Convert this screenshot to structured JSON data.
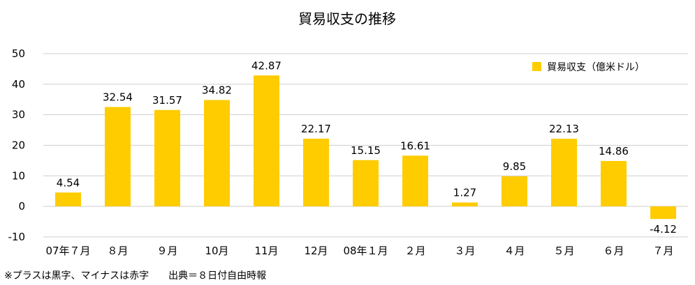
{
  "chart_data": {
    "type": "bar",
    "title": "貿易収支の推移",
    "categories": [
      "07年７月",
      "８月",
      "９月",
      "10月",
      "11月",
      "12月",
      "08年１月",
      "２月",
      "３月",
      "４月",
      "５月",
      "６月",
      "７月"
    ],
    "series": [
      {
        "name": "貿易収支（億米ドル）",
        "values": [
          4.54,
          32.54,
          31.57,
          34.82,
          42.87,
          22.17,
          15.15,
          16.61,
          1.27,
          9.85,
          22.13,
          14.86,
          -4.12
        ],
        "color": "#FFCC00"
      }
    ],
    "data_labels": [
      "4.54",
      "32.54",
      "31.57",
      "34.82",
      "42.87",
      "22.17",
      "15.15",
      "16.61",
      "1.27",
      "9.85",
      "22.13",
      "14.86",
      "-4.12"
    ],
    "ylim": [
      -10,
      50
    ],
    "yticks": [
      -10,
      0,
      10,
      20,
      30,
      40,
      50
    ],
    "grid": true,
    "legend_position": "top-right",
    "footnote": "※プラスは黒字、マイナスは赤字　　出典＝８日付自由時報"
  }
}
